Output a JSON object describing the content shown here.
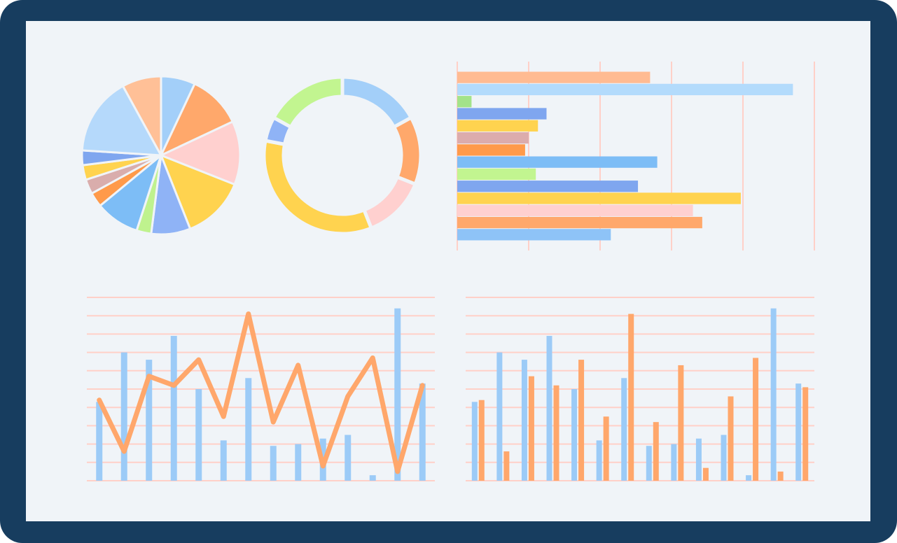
{
  "chart_data": [
    {
      "type": "pie",
      "values": [
        7,
        11,
        13,
        13,
        8,
        3,
        9,
        3,
        3,
        3,
        3,
        16,
        8
      ],
      "colors": [
        "#a3cff9",
        "#ffa86b",
        "#ffd0cf",
        "#ffd34f",
        "#8fb3f6",
        "#bff28e",
        "#7dbdf6",
        "#ff9a4a",
        "#d9adac",
        "#ffd34f",
        "#7fa6ef",
        "#b5d9fb",
        "#ffc097"
      ]
    },
    {
      "type": "donut",
      "values": [
        17,
        14,
        13,
        34,
        5,
        17
      ],
      "colors": [
        "#a3cff9",
        "#ffa86b",
        "#ffd0cf",
        "#ffd34f",
        "#8fb3f6",
        "#c2f590"
      ]
    },
    {
      "type": "barh",
      "categories": [
        null,
        null,
        null,
        null,
        null,
        null,
        null,
        null,
        null,
        null,
        null,
        null,
        null,
        null
      ],
      "values": [
        27,
        47,
        2,
        12.5,
        11.3,
        10,
        9.5,
        28,
        11,
        25.3,
        39.7,
        33,
        34.3,
        21.5
      ],
      "colors": [
        "#ffbb92",
        "#b3dbfc",
        "#a3e38a",
        "#7fa6ef",
        "#ffd34f",
        "#dcacac",
        "#ff9a4a",
        "#7dbdf6",
        "#c2f590",
        "#7fa6ef",
        "#ffd34f",
        "#ffd0cf",
        "#ffa86b",
        "#8ec3f7"
      ],
      "xlim": [
        0,
        50
      ],
      "xticks": [
        0,
        10,
        20,
        30,
        40,
        50
      ],
      "grid": true
    },
    {
      "type": "combo",
      "categories": [
        null,
        null,
        null,
        null,
        null,
        null,
        null,
        null,
        null,
        null,
        null,
        null,
        null,
        null
      ],
      "series": [
        {
          "type": "bar",
          "color": "#9ccbf7",
          "values": [
            43,
            70,
            66,
            79,
            50,
            22,
            56,
            19,
            20,
            23,
            25,
            3,
            94,
            53
          ]
        },
        {
          "type": "line",
          "color": "#ffa76b",
          "values": [
            44,
            16,
            57,
            52,
            66,
            35,
            91,
            32,
            63,
            8,
            46,
            67,
            5,
            52
          ]
        }
      ],
      "ylim": [
        0,
        100
      ],
      "yticks": [
        0,
        10,
        20,
        30,
        40,
        50,
        60,
        70,
        80,
        90,
        100
      ],
      "grid": true
    },
    {
      "type": "combo",
      "categories": [
        null,
        null,
        null,
        null,
        null,
        null,
        null,
        null,
        null,
        null,
        null,
        null,
        null,
        null
      ],
      "series": [
        {
          "type": "bar",
          "color": "#9ccbf7",
          "values": [
            43,
            70,
            66,
            79,
            50,
            22,
            56,
            19,
            20,
            23,
            25,
            3,
            94,
            53
          ]
        },
        {
          "type": "bar",
          "color": "#ffa76b",
          "values": [
            44,
            16,
            57,
            52,
            66,
            35,
            91,
            32,
            63,
            7,
            46,
            67,
            5,
            51
          ]
        }
      ],
      "ylim": [
        0,
        100
      ],
      "yticks": [
        0,
        10,
        20,
        30,
        40,
        50,
        60,
        70,
        80,
        90,
        100
      ],
      "grid": true
    }
  ]
}
